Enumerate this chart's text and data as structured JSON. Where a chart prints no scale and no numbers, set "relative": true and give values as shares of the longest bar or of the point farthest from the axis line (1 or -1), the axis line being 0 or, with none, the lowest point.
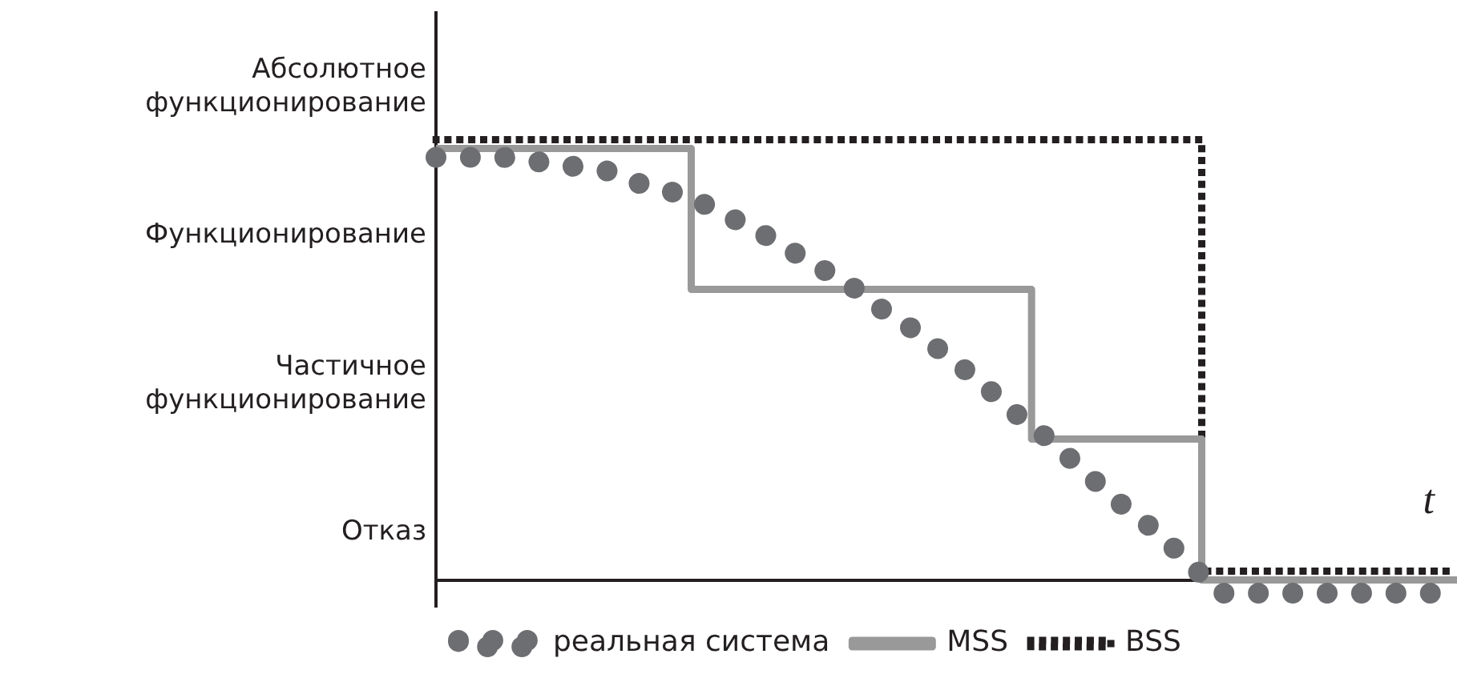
{
  "chart_data": {
    "type": "line",
    "xlabel": "t",
    "relative": true,
    "categories": [
      null,
      null,
      null,
      null,
      null,
      null,
      null,
      null,
      null,
      null,
      null,
      null,
      null,
      null,
      null,
      null,
      null,
      null,
      null,
      null,
      null,
      null,
      null,
      null,
      null,
      null,
      null,
      null,
      null,
      null,
      null
    ],
    "annotations": [
      "Абсолютное функционирование",
      "Функционирование",
      "Частичное функционирование",
      "Отказ"
    ],
    "grid": false,
    "legend": "bottom left",
    "series": [
      {
        "name": "реальная система",
        "type": "line",
        "line_style": "dotted",
        "color": "#6d6e71",
        "values": [
          0.96,
          0.96,
          0.96,
          0.95,
          0.94,
          0.93,
          0.9,
          0.88,
          0.85,
          0.81,
          0.77,
          0.72,
          0.68,
          0.62,
          0.57,
          0.51,
          0.45,
          0.38,
          0.32,
          0.25,
          0.18,
          0.12,
          0.05,
          -0.03,
          -0.03,
          -0.03,
          -0.03,
          -0.03,
          -0.03,
          -0.03,
          -0.03
        ]
      },
      {
        "name": "MSS",
        "type": "step",
        "line_style": "solid",
        "color": "#999999",
        "values": [
          0.98,
          0.98,
          0.98,
          0.98,
          0.98,
          0.98,
          0.98,
          0.98,
          0.66,
          0.66,
          0.66,
          0.66,
          0.66,
          0.66,
          0.66,
          0.66,
          0.66,
          0.66,
          0.32,
          0.32,
          0.32,
          0.32,
          0.32,
          0,
          0,
          0,
          0,
          0,
          0,
          0,
          0
        ]
      },
      {
        "name": "BSS",
        "type": "step",
        "line_style": "dotted",
        "color": "#231f20",
        "values": [
          1,
          1,
          1,
          1,
          1,
          1,
          1,
          1,
          1,
          1,
          1,
          1,
          1,
          1,
          1,
          1,
          1,
          1,
          1,
          1,
          1,
          1,
          1,
          0.02,
          0.02,
          0.02,
          0.02,
          0.02,
          0.02,
          0.02,
          0.02
        ]
      }
    ]
  }
}
